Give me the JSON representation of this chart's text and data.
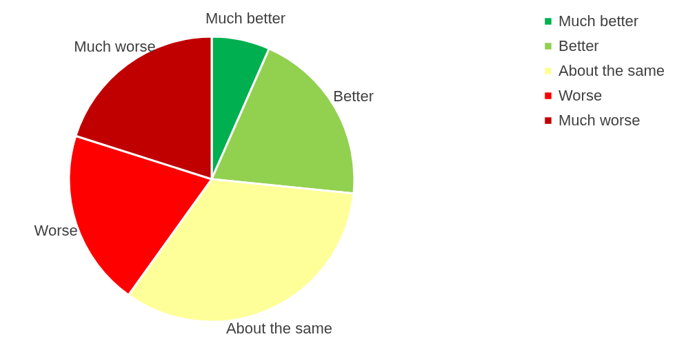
{
  "chart_data": {
    "type": "pie",
    "categories": [
      "Much better",
      "Better",
      "About the same",
      "Worse",
      "Much worse"
    ],
    "values": [
      6.6,
      20,
      33.3,
      20,
      20.1
    ],
    "colors": [
      "#00b050",
      "#92d050",
      "#ffff99",
      "#ff0000",
      "#c00000"
    ],
    "legend": "right"
  }
}
